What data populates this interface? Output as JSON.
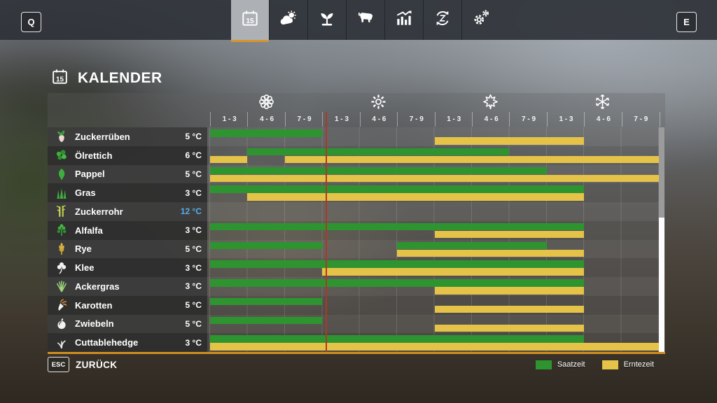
{
  "topbar": {
    "left_hotkey": "Q",
    "right_hotkey": "E",
    "tabs": [
      {
        "icon": "calendar-icon",
        "selected": true
      },
      {
        "icon": "weather-icon",
        "selected": false
      },
      {
        "icon": "crops-icon",
        "selected": false
      },
      {
        "icon": "animals-icon",
        "selected": false
      },
      {
        "icon": "statistics-icon",
        "selected": false
      },
      {
        "icon": "crop-rotation-icon",
        "selected": false
      },
      {
        "icon": "settings-icon",
        "selected": false
      }
    ]
  },
  "header": {
    "title": "KALENDER",
    "title_icon": "calendar-icon"
  },
  "calendar": {
    "seasons": [
      {
        "name": "spring",
        "icon": "flower-icon",
        "periods": [
          "1 - 3",
          "4 - 6",
          "7 - 9"
        ]
      },
      {
        "name": "summer",
        "icon": "sun-icon",
        "periods": [
          "1 - 3",
          "4 - 6",
          "7 - 9"
        ]
      },
      {
        "name": "autumn",
        "icon": "leaf-icon",
        "periods": [
          "1 - 3",
          "4 - 6",
          "7 - 9"
        ]
      },
      {
        "name": "winter",
        "icon": "snowflake-icon",
        "periods": [
          "1 - 3",
          "4 - 6",
          "7 - 9"
        ]
      }
    ],
    "rows": [
      {
        "crop": "Zuckerrüben",
        "icon": "sugar-beet-icon",
        "temp": "5 °C",
        "temp_highlight": false,
        "sow": [
          [
            0,
            3
          ]
        ],
        "harvest": [
          [
            6,
            10
          ]
        ]
      },
      {
        "crop": "Ölrettich",
        "icon": "oilseed-radish-icon",
        "temp": "6 °C",
        "temp_highlight": false,
        "sow": [
          [
            1,
            8
          ]
        ],
        "harvest": [
          [
            0,
            1
          ],
          [
            2,
            12
          ]
        ]
      },
      {
        "crop": "Pappel",
        "icon": "poplar-icon",
        "temp": "5 °C",
        "temp_highlight": false,
        "sow": [
          [
            0,
            9
          ]
        ],
        "harvest": [
          [
            0,
            12
          ]
        ]
      },
      {
        "crop": "Gras",
        "icon": "grass-icon",
        "temp": "3 °C",
        "temp_highlight": false,
        "sow": [
          [
            0,
            10
          ]
        ],
        "harvest": [
          [
            1,
            10
          ]
        ]
      },
      {
        "crop": "Zuckerrohr",
        "icon": "sugarcane-icon",
        "temp": "12 °C",
        "temp_highlight": true,
        "sow": [],
        "harvest": []
      },
      {
        "crop": "Alfalfa",
        "icon": "alfalfa-icon",
        "temp": "3 °C",
        "temp_highlight": false,
        "sow": [
          [
            0,
            10
          ]
        ],
        "harvest": [
          [
            6,
            10
          ]
        ]
      },
      {
        "crop": "Rye",
        "icon": "rye-icon",
        "temp": "5 °C",
        "temp_highlight": false,
        "sow": [
          [
            0,
            3
          ],
          [
            5,
            9
          ]
        ],
        "harvest": [
          [
            5,
            10
          ]
        ]
      },
      {
        "crop": "Klee",
        "icon": "clover-icon",
        "temp": "3 °C",
        "temp_highlight": false,
        "sow": [
          [
            0,
            10
          ]
        ],
        "harvest": [
          [
            3,
            10
          ]
        ]
      },
      {
        "crop": "Ackergras",
        "icon": "field-grass-icon",
        "temp": "3 °C",
        "temp_highlight": false,
        "sow": [
          [
            0,
            10
          ]
        ],
        "harvest": [
          [
            6,
            10
          ]
        ]
      },
      {
        "crop": "Karotten",
        "icon": "carrot-icon",
        "temp": "5 °C",
        "temp_highlight": false,
        "sow": [
          [
            0,
            3
          ]
        ],
        "harvest": [
          [
            6,
            10
          ]
        ]
      },
      {
        "crop": "Zwiebeln",
        "icon": "onion-icon",
        "temp": "5 °C",
        "temp_highlight": false,
        "sow": [
          [
            0,
            3
          ]
        ],
        "harvest": [
          [
            6,
            10
          ]
        ]
      },
      {
        "crop": "Cuttablehedge",
        "icon": "hedge-icon",
        "temp": "3 °C",
        "temp_highlight": false,
        "sow": [
          [
            0,
            10
          ]
        ],
        "harvest": [
          [
            0,
            12
          ]
        ]
      }
    ],
    "current_day_marker_units": 3.1,
    "colors": {
      "sow": "#2e9430",
      "harvest": "#e5c349",
      "marker": "#a93a26"
    }
  },
  "footer": {
    "back_key": "ESC",
    "back_label": "ZURÜCK",
    "legend": [
      {
        "label": "Saatzeit",
        "color": "#2e9430"
      },
      {
        "label": "Erntezeit",
        "color": "#e5c349"
      }
    ]
  }
}
